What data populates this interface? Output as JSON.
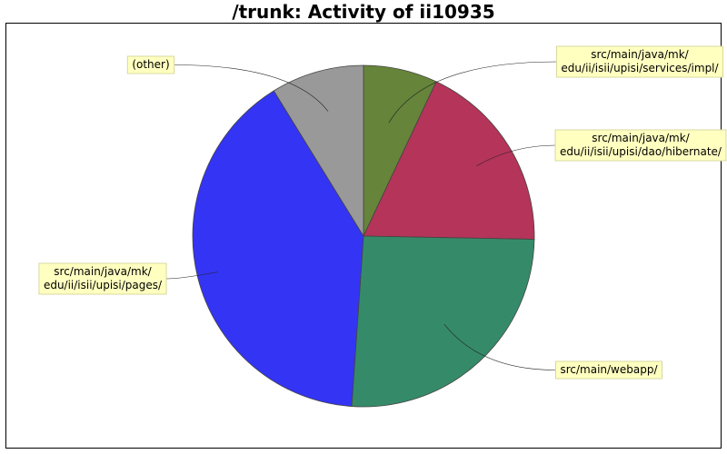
{
  "chart_data": {
    "type": "pie",
    "title": "/trunk: Activity of ii10935",
    "slices": [
      {
        "label_lines": [
          "src/main/java/mk/",
          "edu/ii/isii/upisi/services/impl/"
        ],
        "value": 7.0,
        "color": "#66843a"
      },
      {
        "label_lines": [
          "src/main/java/mk/",
          "edu/ii/isii/upisi/dao/hibernate/"
        ],
        "value": 18.3,
        "color": "#b4345a"
      },
      {
        "label_lines": [
          "src/main/webapp/"
        ],
        "value": 25.8,
        "color": "#358b69"
      },
      {
        "label_lines": [
          "src/main/java/mk/",
          "edu/ii/isii/upisi/pages/"
        ],
        "value": 40.1,
        "color": "#3434f4"
      },
      {
        "label_lines": [
          "(other)"
        ],
        "value": 8.8,
        "color": "#999999"
      }
    ]
  }
}
